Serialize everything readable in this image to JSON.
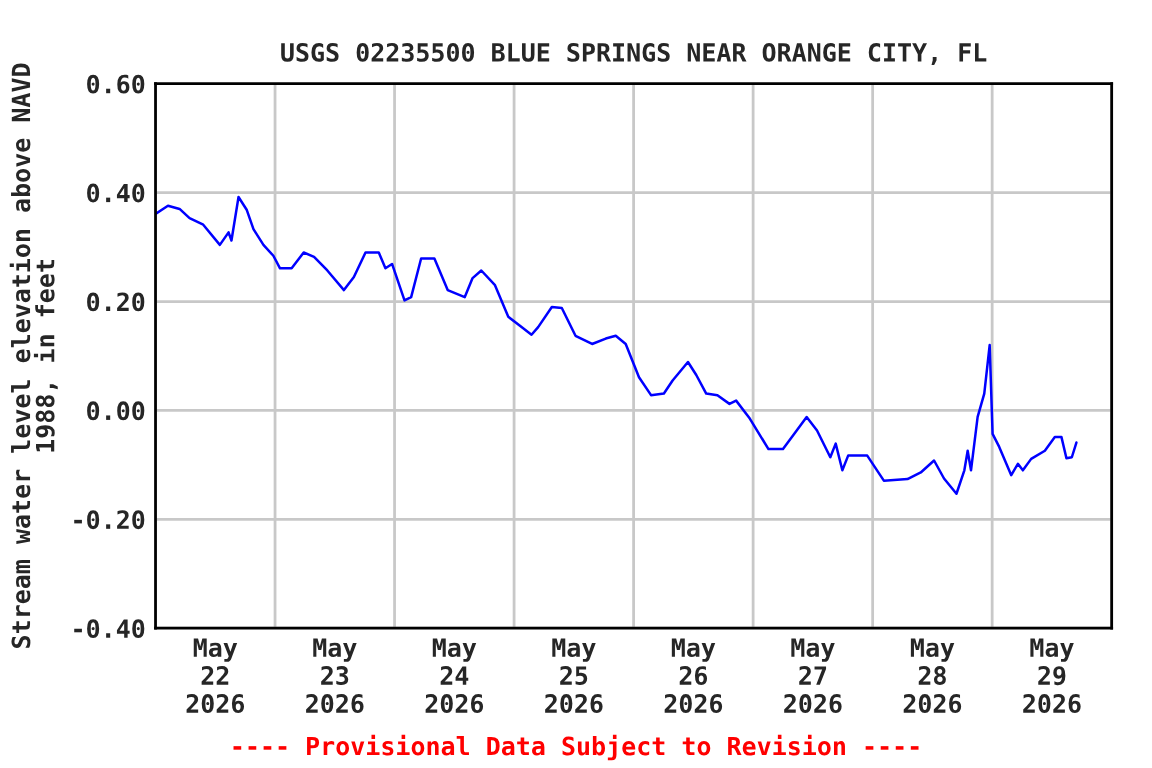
{
  "chart_data": {
    "type": "line",
    "title": "USGS 02235500 BLUE SPRINGS NEAR ORANGE CITY, FL",
    "ylabel": "Stream water level elevation above NAVD\n1988, in feet",
    "annotations": [
      "---- Provisional Data Subject to Revision ----"
    ],
    "x": [
      "2026-05-22T00:00",
      "2026-05-22T02:30",
      "2026-05-22T04:50",
      "2026-05-22T06:50",
      "2026-05-22T09:35",
      "2026-05-22T12:55",
      "2026-05-22T14:40",
      "2026-05-22T15:15",
      "2026-05-22T16:40",
      "2026-05-22T18:20",
      "2026-05-22T19:40",
      "2026-05-22T21:40",
      "2026-05-22T23:40",
      "2026-05-23T01:00",
      "2026-05-23T03:20",
      "2026-05-23T05:45",
      "2026-05-23T07:50",
      "2026-05-23T10:30",
      "2026-05-23T13:50",
      "2026-05-23T15:50",
      "2026-05-23T18:10",
      "2026-05-23T20:50",
      "2026-05-23T22:10",
      "2026-05-23T23:30",
      "2026-05-24T02:00",
      "2026-05-24T03:20",
      "2026-05-24T05:20",
      "2026-05-24T08:00",
      "2026-05-24T10:40",
      "2026-05-24T14:05",
      "2026-05-24T15:40",
      "2026-05-24T17:25",
      "2026-05-24T20:10",
      "2026-05-24T22:50",
      "2026-05-25T01:30",
      "2026-05-25T03:30",
      "2026-05-25T04:50",
      "2026-05-25T07:35",
      "2026-05-25T09:35",
      "2026-05-25T12:20",
      "2026-05-25T15:40",
      "2026-05-25T18:25",
      "2026-05-25T20:25",
      "2026-05-25T22:25",
      "2026-05-26T01:05",
      "2026-05-26T03:30",
      "2026-05-26T06:05",
      "2026-05-26T07:50",
      "2026-05-26T10:55",
      "2026-05-26T12:35",
      "2026-05-26T14:35",
      "2026-05-26T16:50",
      "2026-05-26T19:15",
      "2026-05-26T20:35",
      "2026-05-26T23:20",
      "2026-05-27T03:05",
      "2026-05-27T06:00",
      "2026-05-27T08:45",
      "2026-05-27T10:45",
      "2026-05-27T12:50",
      "2026-05-27T15:30",
      "2026-05-27T16:35",
      "2026-05-27T17:55",
      "2026-05-27T19:05",
      "2026-05-27T22:55",
      "2026-05-28T02:15",
      "2026-05-28T07:00",
      "2026-05-28T09:40",
      "2026-05-28T12:20",
      "2026-05-28T14:20",
      "2026-05-28T16:50",
      "2026-05-28T18:25",
      "2026-05-28T19:05",
      "2026-05-28T19:45",
      "2026-05-28T21:05",
      "2026-05-28T22:25",
      "2026-05-28T23:30",
      "2026-05-29T00:05",
      "2026-05-29T01:25",
      "2026-05-29T03:50",
      "2026-05-29T05:10",
      "2026-05-29T06:10",
      "2026-05-29T07:50",
      "2026-05-29T10:35",
      "2026-05-29T12:35",
      "2026-05-29T13:55",
      "2026-05-29T14:55",
      "2026-05-29T16:00",
      "2026-05-29T16:55"
    ],
    "series": [
      {
        "color": "#0000ff",
        "values": [
          0.361,
          0.376,
          0.37,
          0.353,
          0.341,
          0.304,
          0.327,
          0.312,
          0.392,
          0.368,
          0.333,
          0.304,
          0.284,
          0.261,
          0.261,
          0.29,
          0.282,
          0.257,
          0.221,
          0.245,
          0.29,
          0.29,
          0.261,
          0.269,
          0.202,
          0.208,
          0.279,
          0.279,
          0.221,
          0.208,
          0.243,
          0.257,
          0.23,
          0.172,
          0.153,
          0.139,
          0.153,
          0.19,
          0.188,
          0.137,
          0.122,
          0.132,
          0.137,
          0.122,
          0.061,
          0.028,
          0.031,
          0.055,
          0.089,
          0.065,
          0.031,
          0.028,
          0.012,
          0.018,
          -0.015,
          -0.071,
          -0.071,
          -0.037,
          -0.012,
          -0.037,
          -0.086,
          -0.061,
          -0.11,
          -0.083,
          -0.083,
          -0.129,
          -0.126,
          -0.114,
          -0.092,
          -0.125,
          -0.153,
          -0.11,
          -0.074,
          -0.11,
          -0.012,
          0.031,
          0.12,
          -0.043,
          -0.067,
          -0.119,
          -0.098,
          -0.11,
          -0.089,
          -0.074,
          -0.049,
          -0.049,
          -0.088,
          -0.086,
          -0.059
        ]
      }
    ],
    "xlim": [
      "2026-05-22",
      "2026-05-30"
    ],
    "xticks": [
      {
        "value": "2026-05-22",
        "label": null
      },
      {
        "value": "2026-05-22T12:00",
        "label": "May\n22\n2026"
      },
      {
        "value": "2026-05-23",
        "label": null
      },
      {
        "value": "2026-05-23T12:00",
        "label": "May\n23\n2026"
      },
      {
        "value": "2026-05-24",
        "label": null
      },
      {
        "value": "2026-05-24T12:00",
        "label": "May\n24\n2026"
      },
      {
        "value": "2026-05-25",
        "label": null
      },
      {
        "value": "2026-05-25T12:00",
        "label": "May\n25\n2026"
      },
      {
        "value": "2026-05-26",
        "label": null
      },
      {
        "value": "2026-05-26T12:00",
        "label": "May\n26\n2026"
      },
      {
        "value": "2026-05-27",
        "label": null
      },
      {
        "value": "2026-05-27T12:00",
        "label": "May\n27\n2026"
      },
      {
        "value": "2026-05-28",
        "label": null
      },
      {
        "value": "2026-05-28T12:00",
        "label": "May\n28\n2026"
      },
      {
        "value": "2026-05-29",
        "label": null
      },
      {
        "value": "2026-05-29T12:00",
        "label": "May\n29\n2026"
      },
      {
        "value": "2026-05-30",
        "label": null
      }
    ],
    "ylim": [
      -0.4,
      0.6
    ],
    "yticks": [
      {
        "value": -0.4,
        "label": "-0.40"
      },
      {
        "value": -0.2,
        "label": "-0.20"
      },
      {
        "value": 0.0,
        "label": "0.00"
      },
      {
        "value": 0.2,
        "label": "0.20"
      },
      {
        "value": 0.4,
        "label": "0.40"
      },
      {
        "value": 0.6,
        "label": "0.60"
      }
    ],
    "grid": true,
    "legend": false,
    "marker": "none",
    "line_style": "solid"
  }
}
